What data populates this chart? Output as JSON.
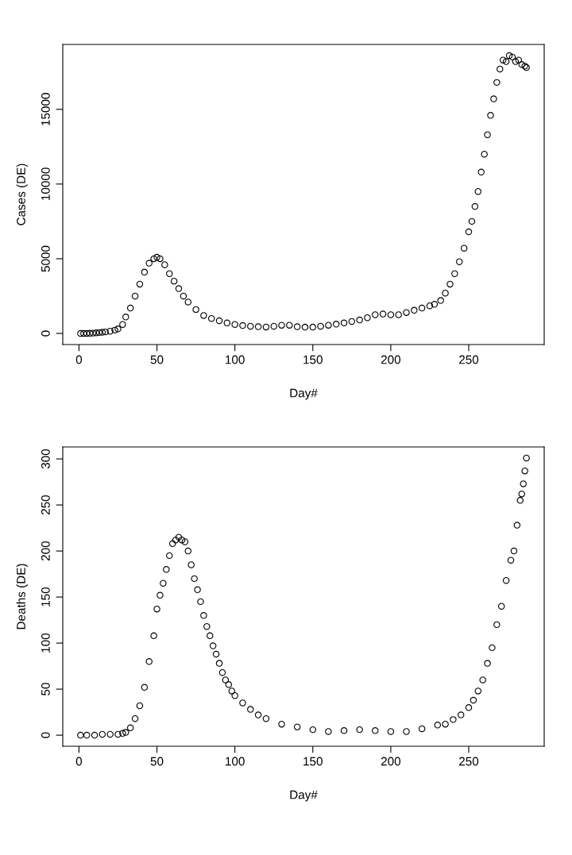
{
  "chart_data": [
    {
      "type": "scatter",
      "xlabel": "Day#",
      "ylabel": "Cases (DE)",
      "marker": "circle",
      "grid": false,
      "xlim": [
        -10.4,
        298.4
      ],
      "ylim": [
        -744,
        19344
      ],
      "xticks": [
        0,
        50,
        100,
        150,
        200,
        250
      ],
      "yticks": [
        0,
        5000,
        10000,
        15000
      ],
      "series": [
        {
          "color": "#000000",
          "x": [
            1,
            3,
            5,
            7,
            9,
            11,
            13,
            15,
            17,
            20,
            23,
            25,
            28,
            30,
            33,
            36,
            39,
            42,
            45,
            48,
            50,
            52,
            55,
            58,
            61,
            64,
            67,
            70,
            75,
            80,
            85,
            90,
            95,
            100,
            105,
            110,
            115,
            120,
            125,
            130,
            135,
            140,
            145,
            150,
            155,
            160,
            165,
            170,
            175,
            180,
            185,
            190,
            195,
            200,
            205,
            210,
            215,
            220,
            225,
            228,
            232,
            235,
            238,
            241,
            244,
            247,
            250,
            252,
            254,
            256,
            258,
            260,
            262,
            264,
            266,
            268,
            270,
            272,
            274,
            276,
            278,
            280,
            282,
            284,
            286,
            287
          ],
          "values": [
            0,
            0,
            0,
            10,
            20,
            40,
            60,
            80,
            100,
            150,
            220,
            300,
            600,
            1100,
            1700,
            2500,
            3300,
            4100,
            4700,
            5000,
            5100,
            5000,
            4600,
            4000,
            3500,
            3000,
            2500,
            2100,
            1600,
            1200,
            1000,
            850,
            700,
            600,
            530,
            480,
            450,
            430,
            480,
            550,
            550,
            450,
            420,
            420,
            480,
            550,
            620,
            700,
            800,
            900,
            1050,
            1250,
            1300,
            1250,
            1250,
            1400,
            1550,
            1700,
            1850,
            1950,
            2200,
            2700,
            3300,
            4000,
            4800,
            5700,
            6800,
            7500,
            8500,
            9500,
            10800,
            12000,
            13300,
            14600,
            15700,
            16800,
            17700,
            18300,
            18200,
            18600,
            18500,
            18200,
            18300,
            18000,
            17900,
            17800
          ]
        }
      ]
    },
    {
      "type": "scatter",
      "xlabel": "Day#",
      "ylabel": "Deaths (DE)",
      "marker": "circle",
      "grid": false,
      "xlim": [
        -10.4,
        298.4
      ],
      "ylim": [
        -12,
        313
      ],
      "xticks": [
        0,
        50,
        100,
        150,
        200,
        250
      ],
      "yticks": [
        0,
        50,
        100,
        150,
        200,
        250,
        300
      ],
      "series": [
        {
          "color": "#000000",
          "x": [
            1,
            5,
            10,
            15,
            20,
            25,
            28,
            30,
            33,
            36,
            39,
            42,
            45,
            48,
            50,
            52,
            54,
            56,
            58,
            60,
            62,
            64,
            66,
            68,
            70,
            72,
            74,
            76,
            78,
            80,
            82,
            84,
            86,
            88,
            90,
            92,
            94,
            96,
            98,
            100,
            105,
            110,
            115,
            120,
            130,
            140,
            150,
            160,
            170,
            180,
            190,
            200,
            210,
            220,
            230,
            235,
            240,
            245,
            250,
            253,
            256,
            259,
            262,
            265,
            268,
            271,
            274,
            277,
            279,
            281,
            283,
            284,
            285,
            286,
            287
          ],
          "values": [
            0,
            0,
            0,
            1,
            1,
            1,
            2,
            3,
            8,
            18,
            32,
            52,
            80,
            108,
            137,
            152,
            165,
            180,
            195,
            208,
            212,
            215,
            212,
            210,
            200,
            185,
            170,
            158,
            145,
            130,
            118,
            108,
            97,
            88,
            78,
            68,
            60,
            55,
            48,
            43,
            35,
            28,
            22,
            18,
            12,
            9,
            6,
            4,
            5,
            6,
            5,
            4,
            4,
            7,
            11,
            12,
            17,
            22,
            30,
            38,
            48,
            60,
            78,
            95,
            120,
            140,
            168,
            190,
            200,
            228,
            255,
            262,
            273,
            287,
            301
          ]
        }
      ]
    }
  ]
}
